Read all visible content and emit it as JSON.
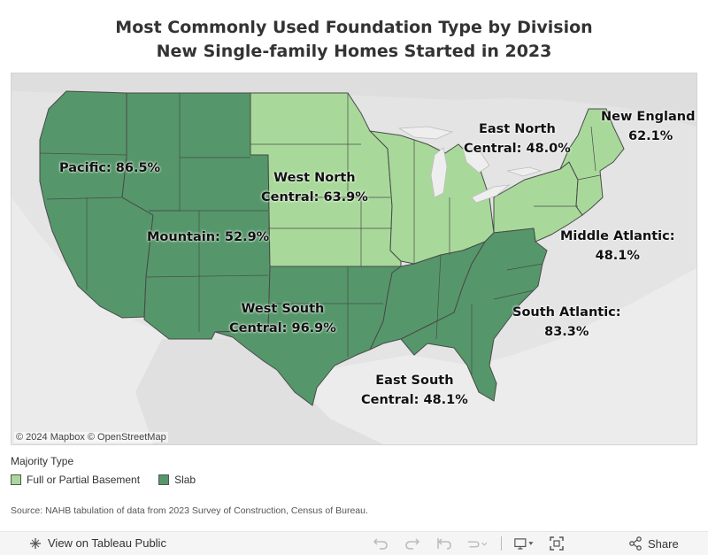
{
  "title": {
    "line1": "Most Commonly Used Foundation Type by Division",
    "line2": "New Single-family Homes Started in 2023"
  },
  "colors": {
    "basement": "#a8d99a",
    "slab": "#55976a",
    "border": "#4a4a4a",
    "land": "#e2e2e2",
    "water": "#eeeeee"
  },
  "map": {
    "attribution": "© 2024 Mapbox  © OpenStreetMap"
  },
  "divisions": [
    {
      "id": "pacific",
      "line1": "Pacific: 86.5%",
      "line2": "",
      "majority": "Slab"
    },
    {
      "id": "mountain",
      "line1": "Mountain: 52.9%",
      "line2": "",
      "majority": "Slab"
    },
    {
      "id": "west-north-central",
      "line1": "West North",
      "line2": "Central: 63.9%",
      "majority": "Full or Partial Basement"
    },
    {
      "id": "east-north-central",
      "line1": "East North",
      "line2": "Central: 48.0%",
      "majority": "Full or Partial Basement"
    },
    {
      "id": "new-england",
      "line1": "New England:",
      "line2": "62.1%",
      "majority": "Full or Partial Basement"
    },
    {
      "id": "middle-atlantic",
      "line1": "Middle Atlantic:",
      "line2": "48.1%",
      "majority": "Full or Partial Basement"
    },
    {
      "id": "south-atlantic",
      "line1": "South Atlantic:",
      "line2": "83.3%",
      "majority": "Slab"
    },
    {
      "id": "west-south-central",
      "line1": "West South",
      "line2": "Central: 96.9%",
      "majority": "Slab"
    },
    {
      "id": "east-south-central",
      "line1": "East South",
      "line2": "Central: 48.1%",
      "majority": "Slab"
    }
  ],
  "legend": {
    "title": "Majority Type",
    "items": [
      {
        "label": "Full or Partial Basement",
        "color": "#a8d99a"
      },
      {
        "label": "Slab",
        "color": "#55976a"
      }
    ]
  },
  "source": "Source: NAHB tabulation of data from 2023 Survey of Construction, Census of Bureau.",
  "footer": {
    "view_label": "View on Tableau Public",
    "share_label": "Share",
    "icons": [
      "undo-icon",
      "redo-icon",
      "revert-icon",
      "refresh-icon",
      "download-icon",
      "fullscreen-icon",
      "share-icon"
    ]
  }
}
